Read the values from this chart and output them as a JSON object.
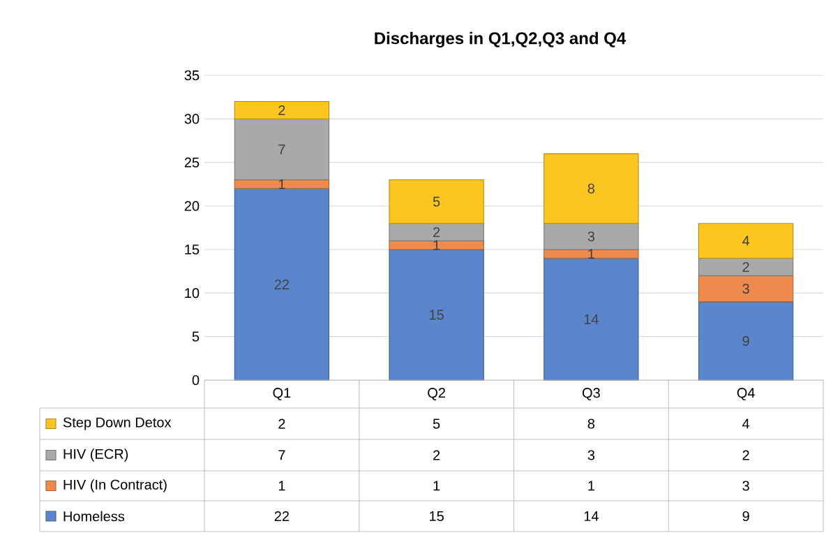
{
  "chart_data": {
    "type": "bar",
    "title": "Discharges in Q1,Q2,Q3 and Q4",
    "categories": [
      "Q1",
      "Q2",
      "Q3",
      "Q4"
    ],
    "series": [
      {
        "name": "Homeless",
        "color": "#5b86cc",
        "values": [
          22,
          15,
          14,
          9
        ],
        "value_labels": [
          "22",
          "15",
          "14",
          "9"
        ]
      },
      {
        "name": "HIV (In Contract)",
        "color": "#ee8b4c",
        "values": [
          1,
          1,
          1,
          3
        ],
        "value_labels": [
          "1",
          "1",
          "1",
          "3"
        ]
      },
      {
        "name": "HIV (ECR)",
        "color": "#a9a9a9",
        "values": [
          7,
          2,
          3,
          2
        ],
        "value_labels": [
          "7",
          "2",
          "3",
          "2"
        ]
      },
      {
        "name": "Step Down Detox",
        "color": "#fcc520",
        "values": [
          2,
          5,
          8,
          4
        ],
        "value_labels": [
          "2",
          "5",
          "8",
          "4"
        ]
      }
    ],
    "stacked": true,
    "ylim": [
      0,
      35
    ],
    "yticks": [
      0,
      5,
      10,
      15,
      20,
      25,
      30,
      35
    ],
    "grid": "y",
    "legend": "bottom",
    "annotations": [
      "2",
      "5",
      "8",
      "4",
      "7",
      "2",
      "3",
      "2",
      "1",
      "1",
      "1",
      "3",
      "22",
      "15",
      "14",
      "9"
    ]
  }
}
